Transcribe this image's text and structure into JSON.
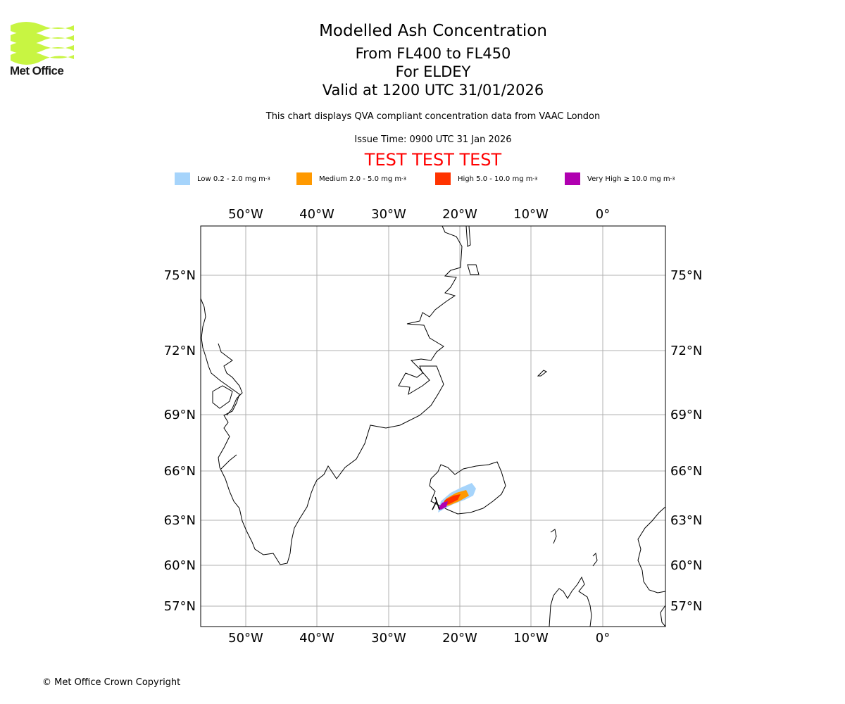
{
  "header": {
    "logo_text": "Met Office",
    "title": "Modelled Ash Concentration",
    "subtitle_levels": "From FL400 to FL450",
    "subtitle_for": "For ELDEY",
    "subtitle_valid": "Valid at 1200 UTC 31/01/2026",
    "info": "This chart displays QVA compliant concentration data from VAAC London",
    "issue_time": "Issue Time: 0900 UTC 31 Jan 2026",
    "test_banner": "TEST TEST TEST"
  },
  "legend": [
    {
      "label": "Low 0.2 - 2.0 mg m",
      "color": "#a6d4fb"
    },
    {
      "label": "Medium 2.0 - 5.0 mg m",
      "color": "#ff9900"
    },
    {
      "label": "High 5.0 - 10.0 mg m",
      "color": "#ff3300"
    },
    {
      "label": "Very High ≥ 10.0 mg m",
      "color": "#b000b0"
    }
  ],
  "legend_unit_exponent": "-3",
  "map": {
    "lon_labels": [
      "50°W",
      "40°W",
      "30°W",
      "20°W",
      "10°W",
      "0°"
    ],
    "lat_labels": [
      "75°N",
      "72°N",
      "69°N",
      "66°N",
      "63°N",
      "60°N",
      "57°N"
    ],
    "grid_color": "#b0b0b0"
  },
  "footer": {
    "copyright": "© Met Office Crown Copyright"
  }
}
